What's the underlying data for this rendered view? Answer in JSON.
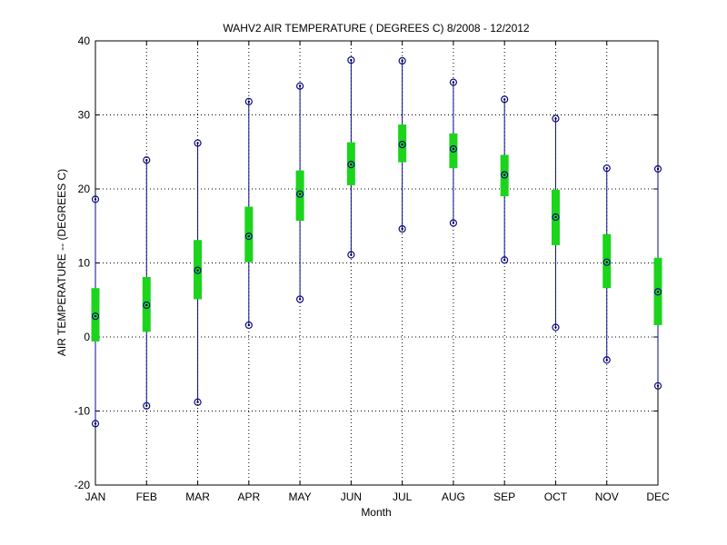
{
  "chart_data": {
    "type": "box",
    "title": "WAHV2  AIR TEMPERATURE ( DEGREES C) 8/2008 - 12/2012",
    "xlabel": "Month",
    "ylabel": "AIR TEMPERATURE -- (DEGREES C)",
    "ylim": [
      -20,
      40
    ],
    "yticks": [
      -20,
      -10,
      0,
      10,
      20,
      30,
      40
    ],
    "categories": [
      "JAN",
      "FEB",
      "MAR",
      "APR",
      "MAY",
      "JUN",
      "JUL",
      "AUG",
      "SEP",
      "OCT",
      "NOV",
      "DEC"
    ],
    "series": [
      {
        "min": [
          -11.7,
          -9.3,
          -8.8,
          1.6,
          5.1,
          11.1,
          14.6,
          15.4,
          10.4,
          1.3,
          -3.1,
          -6.6
        ],
        "q1": [
          -0.6,
          0.7,
          5.1,
          10.1,
          15.7,
          20.5,
          23.6,
          22.8,
          19.0,
          12.4,
          6.6,
          1.6
        ],
        "median": [
          2.8,
          4.3,
          9.0,
          13.6,
          19.3,
          23.3,
          26.0,
          25.4,
          21.9,
          16.2,
          10.1,
          6.1
        ],
        "q3": [
          6.6,
          8.1,
          13.1,
          17.6,
          22.5,
          26.3,
          28.7,
          27.5,
          24.6,
          19.9,
          13.9,
          10.7
        ],
        "max": [
          18.6,
          23.9,
          26.2,
          31.8,
          33.9,
          37.4,
          37.3,
          34.4,
          32.1,
          29.5,
          22.8,
          22.7
        ]
      }
    ],
    "grid": true,
    "colors": {
      "whisker": "#0a0a8c",
      "box": "#1bd41b",
      "marker": "#0a0a8c"
    }
  }
}
